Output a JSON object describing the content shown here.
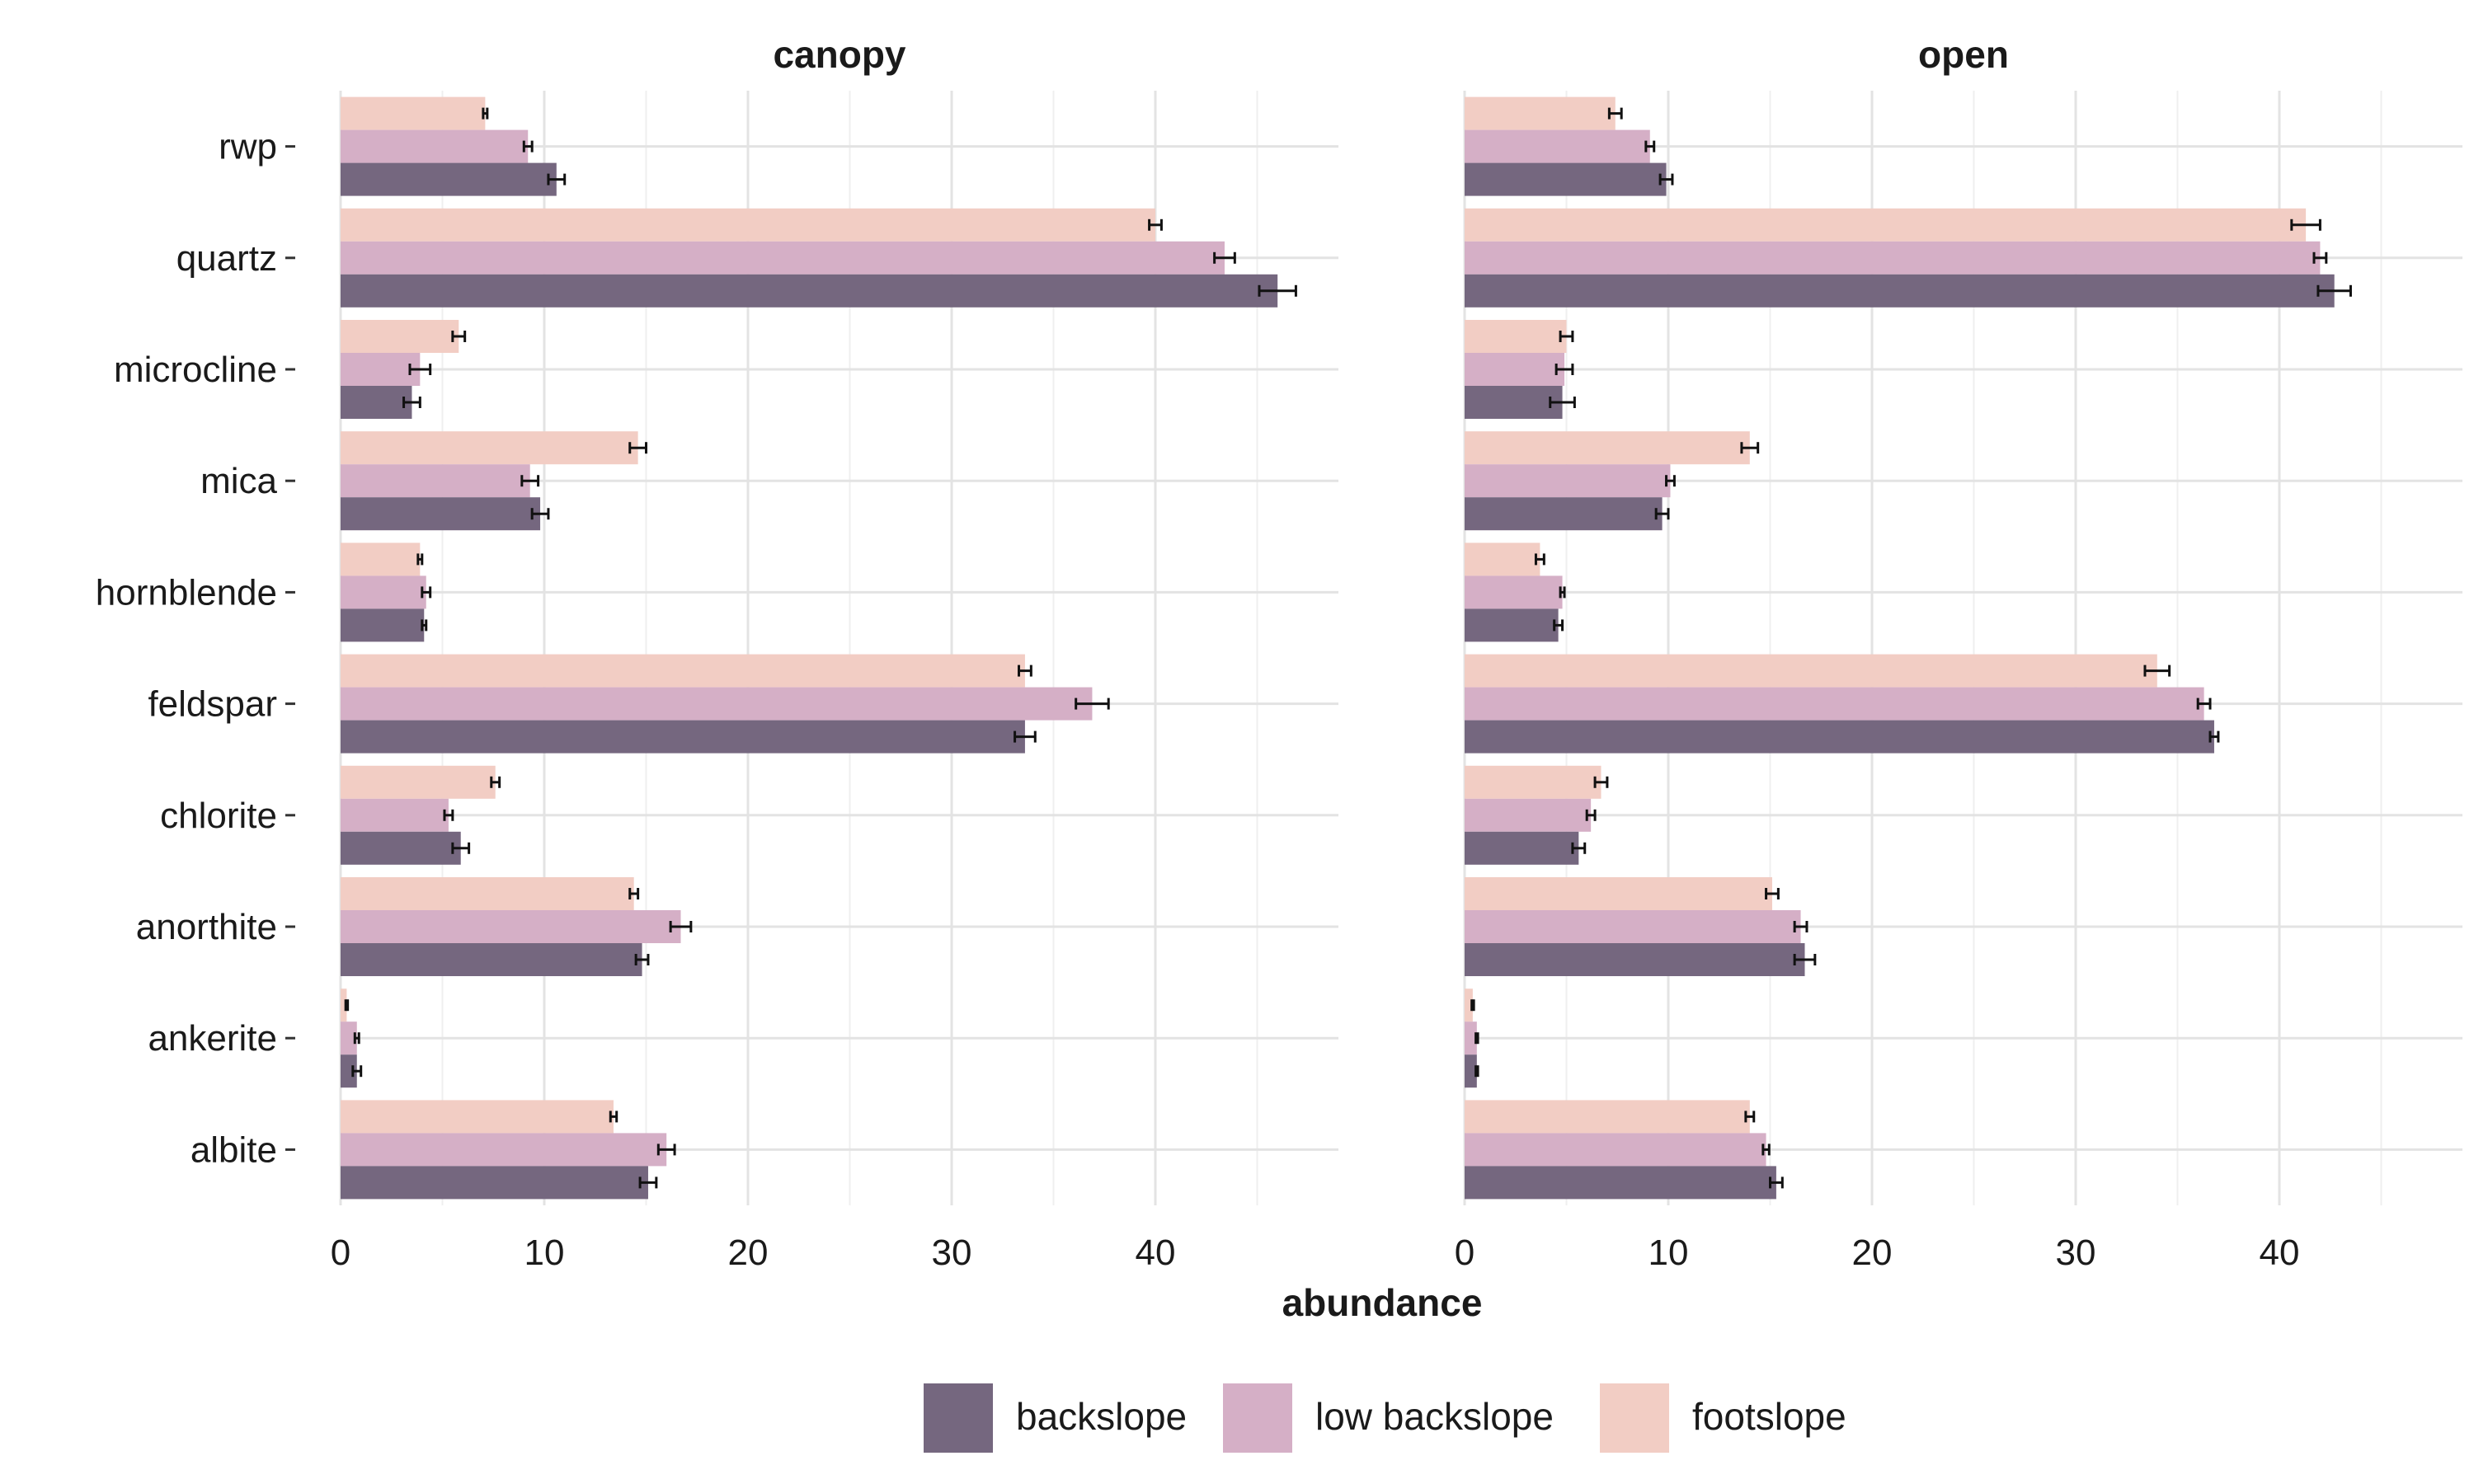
{
  "chart_data": {
    "type": "bar",
    "orientation": "horizontal",
    "xlabel": "abundance",
    "ylabel": "",
    "xlim": [
      0,
      49
    ],
    "x_ticks": [
      0,
      10,
      20,
      30,
      40
    ],
    "grid": true,
    "legend_position": "bottom",
    "categories": [
      "rwp",
      "quartz",
      "microcline",
      "mica",
      "hornblende",
      "feldspar",
      "chlorite",
      "anorthite",
      "ankerite",
      "albite"
    ],
    "series_colors": {
      "backslope": "#75677f",
      "low backslope": "#d5afc6",
      "footslope": "#f2cdc4"
    },
    "legend": [
      "backslope",
      "low backslope",
      "footslope"
    ],
    "panels": [
      {
        "title": "canopy",
        "series": [
          {
            "name": "backslope",
            "values": [
              10.6,
              46.0,
              3.5,
              9.8,
              4.1,
              33.6,
              5.9,
              14.8,
              0.8,
              15.1
            ],
            "errors": [
              0.4,
              0.9,
              0.4,
              0.4,
              0.1,
              0.5,
              0.4,
              0.3,
              0.2,
              0.4
            ]
          },
          {
            "name": "low backslope",
            "values": [
              9.2,
              43.4,
              3.9,
              9.3,
              4.2,
              36.9,
              5.3,
              16.7,
              0.8,
              16.0
            ],
            "errors": [
              0.2,
              0.5,
              0.5,
              0.4,
              0.2,
              0.8,
              0.2,
              0.5,
              0.1,
              0.4
            ]
          },
          {
            "name": "footslope",
            "values": [
              7.1,
              40.0,
              5.8,
              14.6,
              3.9,
              33.6,
              7.6,
              14.4,
              0.3,
              13.4
            ],
            "errors": [
              0.1,
              0.3,
              0.3,
              0.4,
              0.1,
              0.3,
              0.2,
              0.2,
              0.05,
              0.15
            ]
          }
        ]
      },
      {
        "title": "open",
        "series": [
          {
            "name": "backslope",
            "values": [
              9.9,
              42.7,
              4.8,
              9.7,
              4.6,
              36.8,
              5.6,
              16.7,
              0.6,
              15.3
            ],
            "errors": [
              0.3,
              0.8,
              0.6,
              0.3,
              0.2,
              0.2,
              0.3,
              0.5,
              0.05,
              0.3
            ]
          },
          {
            "name": "low backslope",
            "values": [
              9.1,
              42.0,
              4.9,
              10.1,
              4.8,
              36.3,
              6.2,
              16.5,
              0.6,
              14.8
            ],
            "errors": [
              0.2,
              0.3,
              0.4,
              0.2,
              0.1,
              0.3,
              0.2,
              0.3,
              0.05,
              0.15
            ]
          },
          {
            "name": "footslope",
            "values": [
              7.4,
              41.3,
              5.0,
              14.0,
              3.7,
              34.0,
              6.7,
              15.1,
              0.4,
              14.0
            ],
            "errors": [
              0.3,
              0.7,
              0.3,
              0.4,
              0.2,
              0.6,
              0.3,
              0.3,
              0.05,
              0.2
            ]
          }
        ]
      }
    ]
  }
}
